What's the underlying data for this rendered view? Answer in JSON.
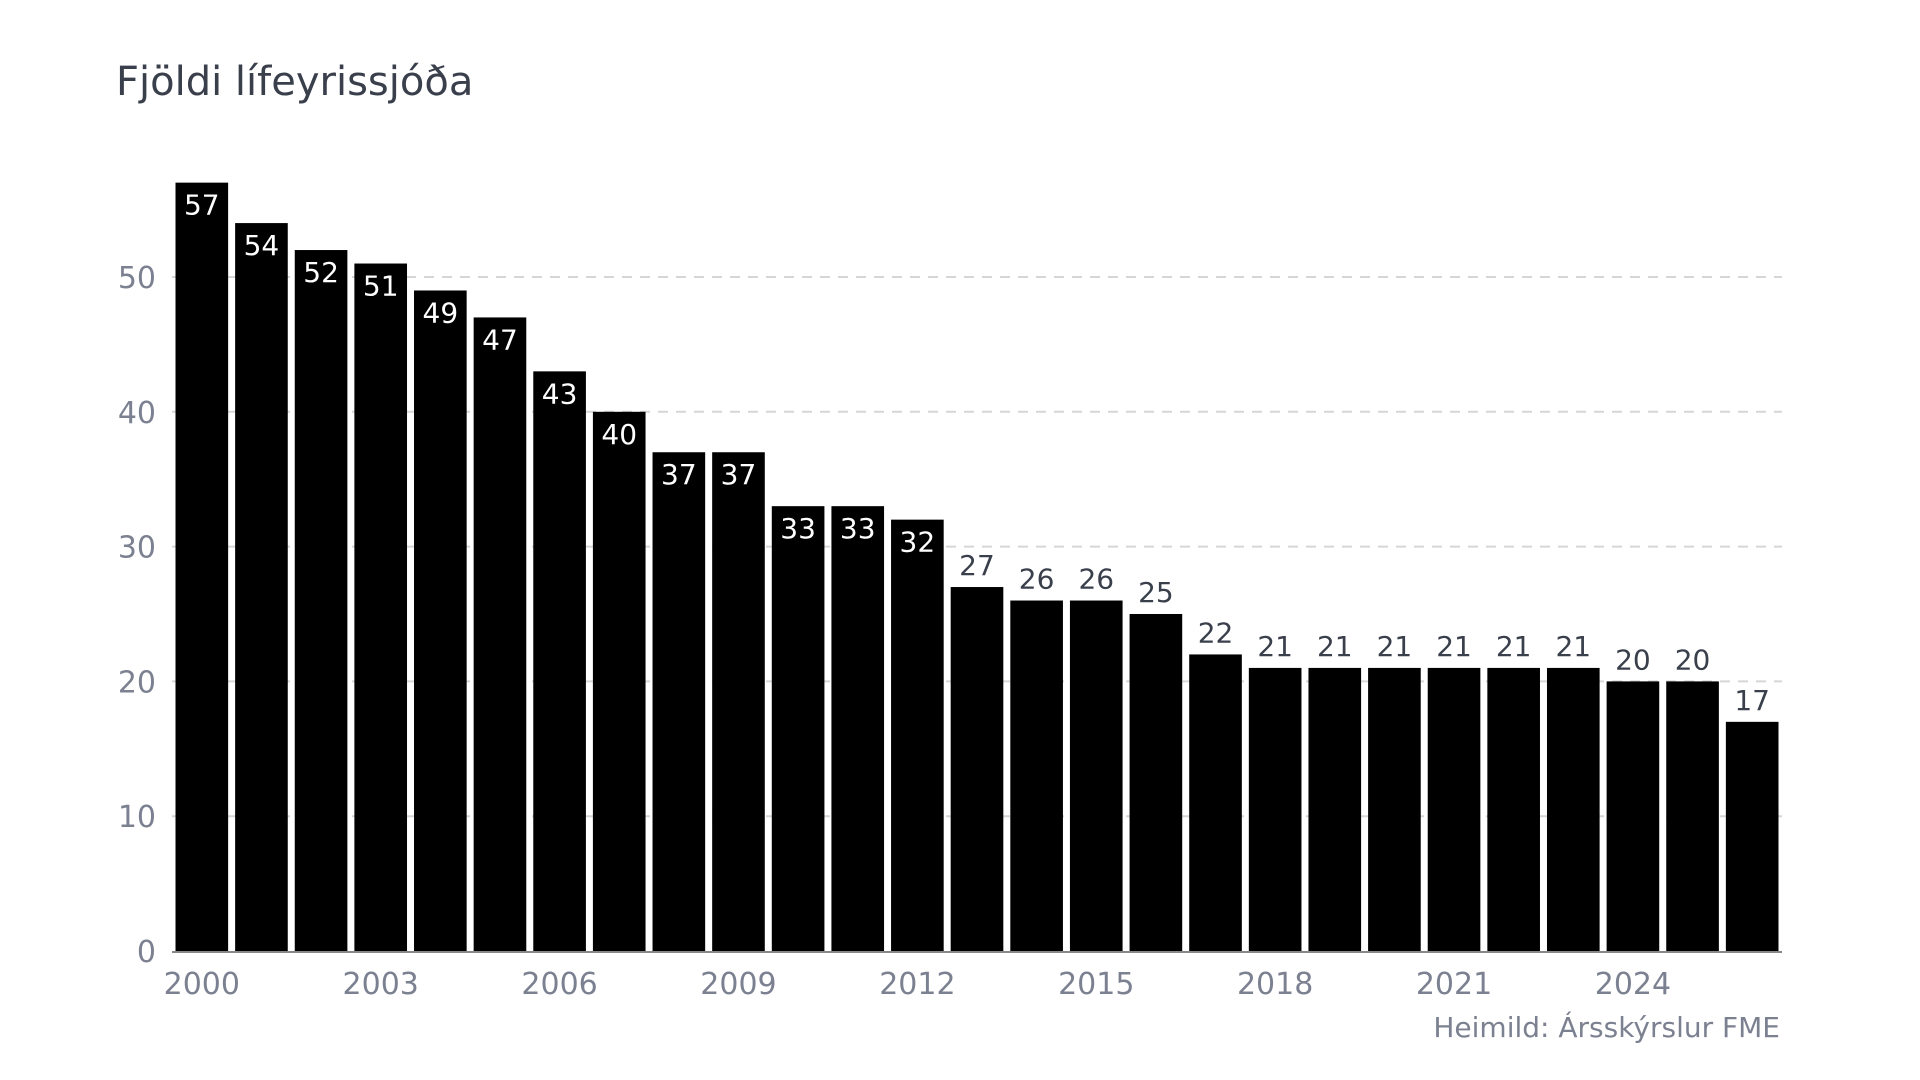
{
  "chart_data": {
    "type": "bar",
    "title": "Fjöldi lífeyrissjóða",
    "source": "Heimild: Ársskýrslur FME",
    "xlabel": "",
    "ylabel": "",
    "categories": [
      "2000",
      "2001",
      "2002",
      "2003",
      "2004",
      "2005",
      "2006",
      "2007",
      "2008",
      "2009",
      "2010",
      "2011",
      "2012",
      "2013",
      "2014",
      "2015",
      "2016",
      "2017",
      "2018",
      "2019",
      "2020",
      "2021",
      "2022",
      "2023",
      "2024",
      "2025",
      "2026"
    ],
    "values": [
      57,
      54,
      52,
      51,
      49,
      47,
      43,
      40,
      37,
      37,
      33,
      33,
      32,
      27,
      26,
      26,
      25,
      22,
      21,
      21,
      21,
      21,
      21,
      21,
      20,
      20,
      17
    ],
    "x_tick_labels": [
      "2000",
      "2003",
      "2006",
      "2009",
      "2012",
      "2015",
      "2018",
      "2021",
      "2024"
    ],
    "y_ticks": [
      0,
      10,
      20,
      30,
      40,
      50
    ],
    "ylim": [
      0,
      57
    ],
    "grid": "horizontal dashed",
    "bar_color": "#000000",
    "legend": "none"
  }
}
